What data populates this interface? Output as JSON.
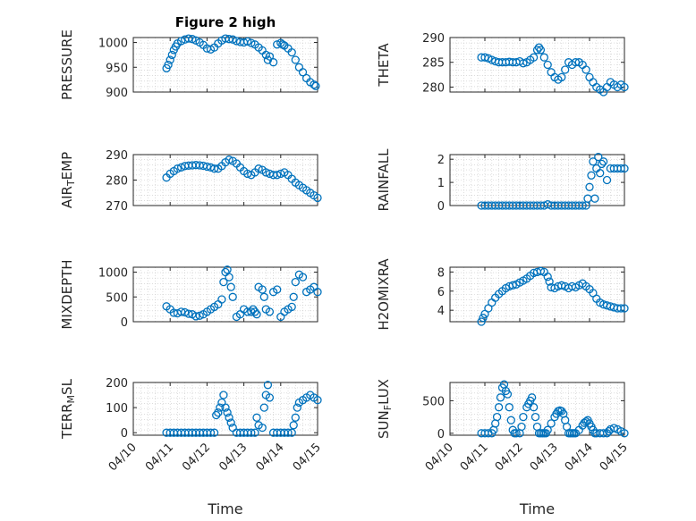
{
  "figure": {
    "title": "Figure 2 high"
  },
  "chart_data": [
    {
      "type": "scatter",
      "panel": "PRESSURE",
      "title": "Figure 2 high",
      "ylabel": "PRESSURE",
      "xlabel": "",
      "ylim": [
        900,
        1010
      ],
      "yticks": [
        900,
        950,
        1000
      ],
      "xlim": [
        0,
        5
      ],
      "xticklabels": [],
      "grid": true,
      "x": [
        0.9,
        0.95,
        1.0,
        1.05,
        1.1,
        1.15,
        1.2,
        1.3,
        1.4,
        1.5,
        1.6,
        1.7,
        1.8,
        1.9,
        2.0,
        2.1,
        2.2,
        2.3,
        2.4,
        2.5,
        2.6,
        2.7,
        2.8,
        2.9,
        3.0,
        3.1,
        3.2,
        3.3,
        3.4,
        3.5,
        3.6,
        3.65,
        3.7,
        3.8,
        3.9,
        4.0,
        4.05,
        4.1,
        4.2,
        4.3,
        4.4,
        4.5,
        4.6,
        4.7,
        4.8,
        4.9,
        4.95
      ],
      "y": [
        948,
        955,
        965,
        975,
        985,
        992,
        998,
        1003,
        1006,
        1008,
        1007,
        1004,
        1000,
        995,
        988,
        986,
        990,
        998,
        1004,
        1008,
        1007,
        1006,
        1003,
        1001,
        1000,
        1002,
        999,
        996,
        990,
        984,
        975,
        965,
        972,
        960,
        996,
        999,
        996,
        994,
        988,
        980,
        965,
        950,
        940,
        928,
        920,
        915,
        912
      ]
    },
    {
      "type": "scatter",
      "panel": "THETA",
      "title": "",
      "ylabel": "THETA",
      "xlabel": "",
      "ylim": [
        279,
        290
      ],
      "yticks": [
        280,
        285,
        290
      ],
      "xlim": [
        0,
        5
      ],
      "xticklabels": [],
      "grid": true,
      "x": [
        0.9,
        1.0,
        1.1,
        1.2,
        1.3,
        1.4,
        1.5,
        1.6,
        1.7,
        1.8,
        1.9,
        2.0,
        2.1,
        2.2,
        2.3,
        2.4,
        2.5,
        2.55,
        2.6,
        2.7,
        2.8,
        2.9,
        3.0,
        3.1,
        3.2,
        3.3,
        3.4,
        3.5,
        3.6,
        3.7,
        3.8,
        3.9,
        4.0,
        4.1,
        4.2,
        4.3,
        4.4,
        4.5,
        4.6,
        4.7,
        4.8,
        4.9,
        5.0
      ],
      "y": [
        286,
        286,
        285.8,
        285.5,
        285.2,
        285,
        285,
        285,
        285.1,
        285,
        285,
        285.2,
        284.8,
        285,
        285.5,
        286,
        287.5,
        288,
        287.5,
        286,
        284.5,
        283,
        282,
        281.5,
        282,
        283.5,
        285,
        284.5,
        285,
        285,
        284.5,
        283.5,
        282,
        281,
        280,
        279.5,
        279,
        280,
        281,
        280.5,
        280,
        280.5,
        280
      ]
    },
    {
      "type": "scatter",
      "panel": "AIR_TEMP",
      "title": "",
      "ylabel": "AIR_TEMP",
      "xlabel": "",
      "ylim": [
        270,
        290
      ],
      "yticks": [
        270,
        280,
        290
      ],
      "xlim": [
        0,
        5
      ],
      "xticklabels": [],
      "grid": true,
      "x": [
        0.9,
        1.0,
        1.1,
        1.2,
        1.3,
        1.4,
        1.5,
        1.6,
        1.7,
        1.8,
        1.9,
        2.0,
        2.1,
        2.2,
        2.3,
        2.4,
        2.5,
        2.6,
        2.7,
        2.8,
        2.9,
        3.0,
        3.1,
        3.2,
        3.3,
        3.4,
        3.5,
        3.6,
        3.7,
        3.8,
        3.9,
        4.0,
        4.1,
        4.2,
        4.3,
        4.4,
        4.5,
        4.6,
        4.7,
        4.8,
        4.9,
        5.0
      ],
      "y": [
        281,
        282.5,
        283.5,
        284.5,
        285,
        285.5,
        285.7,
        285.8,
        285.9,
        285.8,
        285.6,
        285.3,
        285,
        284.5,
        284.5,
        285.5,
        287,
        288,
        287.5,
        286.5,
        285,
        283.5,
        282.5,
        282,
        283,
        284.5,
        284,
        283,
        282.5,
        282,
        282,
        282.5,
        283,
        282,
        280.5,
        279,
        278,
        277,
        276,
        275,
        274,
        273
      ]
    },
    {
      "type": "scatter",
      "panel": "RAINFALL",
      "title": "",
      "ylabel": "RAINFALL",
      "xlabel": "",
      "ylim": [
        0,
        2.2
      ],
      "yticks": [
        0,
        1,
        2
      ],
      "xlim": [
        0,
        5
      ],
      "xticklabels": [],
      "grid": true,
      "x": [
        0.9,
        1.0,
        1.1,
        1.2,
        1.3,
        1.4,
        1.5,
        1.6,
        1.7,
        1.8,
        1.9,
        2.0,
        2.1,
        2.2,
        2.3,
        2.4,
        2.5,
        2.6,
        2.7,
        2.8,
        2.9,
        3.0,
        3.1,
        3.2,
        3.3,
        3.4,
        3.5,
        3.6,
        3.7,
        3.8,
        3.9,
        3.95,
        4.0,
        4.05,
        4.1,
        4.15,
        4.2,
        4.25,
        4.3,
        4.35,
        4.4,
        4.5,
        4.6,
        4.7,
        4.8,
        4.9,
        5.0
      ],
      "y": [
        0,
        0,
        0,
        0,
        0,
        0,
        0,
        0,
        0,
        0,
        0,
        0,
        0,
        0,
        0,
        0,
        0,
        0,
        0,
        0.05,
        0,
        0,
        0,
        0,
        0,
        0,
        0,
        0,
        0,
        0,
        0,
        0.3,
        0.8,
        1.3,
        1.9,
        0.3,
        1.6,
        2.1,
        1.4,
        1.8,
        1.9,
        1.1,
        1.6,
        1.6,
        1.6,
        1.6,
        1.6
      ]
    },
    {
      "type": "scatter",
      "panel": "MIXDEPTH",
      "title": "",
      "ylabel": "MIXDEPTH",
      "xlabel": "",
      "ylim": [
        0,
        1100
      ],
      "yticks": [
        0,
        500,
        1000
      ],
      "xlim": [
        0,
        5
      ],
      "xticklabels": [],
      "grid": true,
      "x": [
        0.9,
        1.0,
        1.1,
        1.2,
        1.3,
        1.4,
        1.5,
        1.6,
        1.7,
        1.8,
        1.9,
        2.0,
        2.1,
        2.2,
        2.3,
        2.4,
        2.45,
        2.5,
        2.55,
        2.6,
        2.65,
        2.7,
        2.8,
        2.9,
        3.0,
        3.1,
        3.2,
        3.25,
        3.3,
        3.35,
        3.4,
        3.5,
        3.55,
        3.6,
        3.7,
        3.8,
        3.9,
        4.0,
        4.1,
        4.2,
        4.3,
        4.35,
        4.4,
        4.5,
        4.6,
        4.7,
        4.8,
        4.9,
        5.0
      ],
      "y": [
        310,
        250,
        180,
        170,
        200,
        190,
        160,
        150,
        110,
        120,
        150,
        200,
        250,
        300,
        350,
        450,
        800,
        1000,
        1050,
        900,
        700,
        500,
        100,
        150,
        250,
        200,
        200,
        250,
        200,
        150,
        700,
        650,
        500,
        250,
        200,
        600,
        650,
        100,
        200,
        250,
        300,
        500,
        800,
        950,
        900,
        600,
        650,
        700,
        600
      ]
    },
    {
      "type": "scatter",
      "panel": "H2OMIXRA",
      "title": "",
      "ylabel": "H2OMIXRA",
      "xlabel": "",
      "ylim": [
        2.8,
        8.5
      ],
      "yticks": [
        4,
        6,
        8
      ],
      "xlim": [
        0,
        5
      ],
      "xticklabels": [],
      "grid": true,
      "x": [
        0.9,
        0.95,
        1.0,
        1.1,
        1.2,
        1.3,
        1.4,
        1.5,
        1.6,
        1.7,
        1.8,
        1.9,
        2.0,
        2.1,
        2.2,
        2.3,
        2.4,
        2.5,
        2.6,
        2.7,
        2.8,
        2.85,
        2.9,
        3.0,
        3.1,
        3.2,
        3.3,
        3.4,
        3.5,
        3.6,
        3.7,
        3.8,
        3.9,
        4.0,
        4.1,
        4.2,
        4.3,
        4.4,
        4.5,
        4.6,
        4.7,
        4.8,
        4.9,
        5.0
      ],
      "y": [
        2.8,
        3.2,
        3.6,
        4.2,
        4.8,
        5.3,
        5.7,
        6.0,
        6.3,
        6.5,
        6.6,
        6.7,
        6.9,
        7.1,
        7.3,
        7.6,
        7.9,
        8.0,
        8.1,
        8.0,
        7.5,
        7.0,
        6.4,
        6.3,
        6.5,
        6.6,
        6.5,
        6.3,
        6.5,
        6.4,
        6.6,
        6.8,
        6.5,
        6.2,
        5.8,
        5.2,
        4.8,
        4.6,
        4.5,
        4.4,
        4.3,
        4.2,
        4.2,
        4.2
      ]
    },
    {
      "type": "scatter",
      "panel": "TERR_MSL",
      "title": "",
      "ylabel": "TERR_MSL",
      "xlabel": "Time",
      "ylim": [
        -10,
        200
      ],
      "yticks": [
        0,
        100,
        200
      ],
      "xlim": [
        0,
        5
      ],
      "xticklabels": [
        "04/10",
        "04/11",
        "04/12",
        "04/13",
        "04/14",
        "04/15"
      ],
      "grid": true,
      "x": [
        0.9,
        1.0,
        1.1,
        1.2,
        1.3,
        1.4,
        1.5,
        1.6,
        1.7,
        1.8,
        1.9,
        2.0,
        2.1,
        2.2,
        2.25,
        2.3,
        2.35,
        2.4,
        2.45,
        2.5,
        2.55,
        2.6,
        2.65,
        2.7,
        2.8,
        2.9,
        3.0,
        3.1,
        3.2,
        3.3,
        3.35,
        3.4,
        3.5,
        3.55,
        3.6,
        3.65,
        3.7,
        3.8,
        3.9,
        4.0,
        4.1,
        4.2,
        4.3,
        4.35,
        4.4,
        4.45,
        4.5,
        4.6,
        4.7,
        4.8,
        4.9,
        5.0
      ],
      "y": [
        0,
        0,
        0,
        0,
        0,
        0,
        0,
        0,
        0,
        0,
        0,
        0,
        0,
        0,
        70,
        80,
        100,
        120,
        150,
        100,
        80,
        60,
        40,
        20,
        0,
        0,
        0,
        0,
        0,
        0,
        60,
        30,
        20,
        100,
        150,
        190,
        140,
        0,
        0,
        0,
        0,
        0,
        0,
        30,
        60,
        100,
        120,
        130,
        140,
        150,
        140,
        130
      ]
    },
    {
      "type": "scatter",
      "panel": "SUN_FLUX",
      "title": "",
      "ylabel": "SUN_FLUX",
      "xlabel": "Time",
      "ylim": [
        -30,
        780
      ],
      "yticks": [
        0,
        500
      ],
      "xlim": [
        0,
        5
      ],
      "xticklabels": [
        "04/10",
        "04/11",
        "04/12",
        "04/13",
        "04/14",
        "04/15"
      ],
      "grid": true,
      "x": [
        0.9,
        1.0,
        1.1,
        1.2,
        1.25,
        1.3,
        1.35,
        1.4,
        1.45,
        1.5,
        1.55,
        1.6,
        1.65,
        1.7,
        1.75,
        1.8,
        1.85,
        1.9,
        2.0,
        2.05,
        2.1,
        2.2,
        2.25,
        2.3,
        2.35,
        2.4,
        2.45,
        2.5,
        2.55,
        2.6,
        2.65,
        2.7,
        2.75,
        2.8,
        2.9,
        3.0,
        3.05,
        3.1,
        3.15,
        3.2,
        3.25,
        3.3,
        3.35,
        3.4,
        3.45,
        3.5,
        3.55,
        3.6,
        3.7,
        3.8,
        3.85,
        3.9,
        3.95,
        4.0,
        4.05,
        4.1,
        4.15,
        4.2,
        4.3,
        4.4,
        4.5,
        4.55,
        4.6,
        4.7,
        4.8,
        4.9,
        5.0
      ],
      "y": [
        0,
        0,
        0,
        0,
        50,
        150,
        250,
        400,
        550,
        700,
        750,
        650,
        600,
        400,
        200,
        50,
        0,
        0,
        0,
        100,
        250,
        400,
        450,
        500,
        550,
        400,
        250,
        100,
        0,
        0,
        0,
        0,
        0,
        50,
        150,
        250,
        300,
        340,
        350,
        340,
        300,
        200,
        100,
        0,
        0,
        0,
        0,
        0,
        50,
        120,
        160,
        180,
        200,
        150,
        100,
        50,
        0,
        0,
        0,
        0,
        0,
        30,
        60,
        80,
        60,
        30,
        0
      ]
    }
  ]
}
